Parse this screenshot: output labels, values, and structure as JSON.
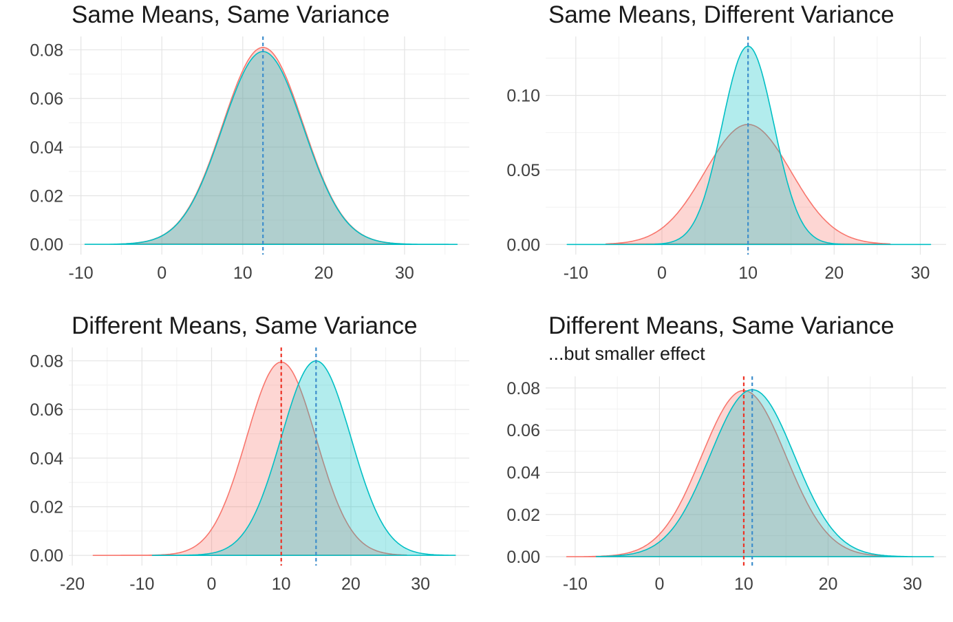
{
  "figure": {
    "background": "#ffffff",
    "colors": {
      "red_stroke": "#F8766D",
      "red_fill": "rgba(248,118,109,0.30)",
      "teal_stroke": "#00BFC4",
      "teal_fill": "rgba(0,191,196,0.30)",
      "blue_dashed": "#3E8ECC",
      "red_dashed": "#EE3124",
      "grid_major": "#E4E4E4",
      "grid_minor": "#F1F1F1",
      "axis_text": "#404040",
      "title_text": "#1a1a1a"
    }
  },
  "chart_data": [
    {
      "type": "area",
      "title": "Same Means, Same Variance",
      "subtitle": "",
      "xlabel": "",
      "ylabel": "",
      "grid": true,
      "legend": "none",
      "xlim": [
        -11.5,
        38
      ],
      "ylim": [
        -0.0042,
        0.0855
      ],
      "x_ticks": [
        -10,
        0,
        10,
        20,
        30
      ],
      "x_tick_labels": [
        "-10",
        "0",
        "10",
        "20",
        "30"
      ],
      "x_minor_ticks": [
        -5,
        5,
        15,
        25,
        35
      ],
      "y_ticks": [
        0,
        0.02,
        0.04,
        0.06,
        0.08
      ],
      "y_tick_labels": [
        "0.00",
        "0.02",
        "0.04",
        "0.06",
        "0.08"
      ],
      "y_minor_ticks": [
        0.01,
        0.03,
        0.05,
        0.07
      ],
      "series": [
        {
          "name": "distribution-red",
          "color_key": "red",
          "distribution": "normal",
          "mean": 12.5,
          "sd": 5,
          "peak_density": 0.081,
          "x_range": [
            -5,
            30
          ]
        },
        {
          "name": "distribution-teal",
          "color_key": "teal",
          "distribution": "normal",
          "mean": 12.5,
          "sd": 5,
          "peak_density": 0.0793,
          "x_range": [
            -9.5,
            36.5
          ]
        }
      ],
      "vlines": [
        {
          "x": 12.5,
          "color_key": "blue_dashed",
          "style": "dashed"
        }
      ]
    },
    {
      "type": "area",
      "title": "Same Means, Different Variance",
      "subtitle": "",
      "xlabel": "",
      "ylabel": "",
      "grid": true,
      "legend": "none",
      "xlim": [
        -13.5,
        33
      ],
      "ylim": [
        -0.0068,
        0.1395
      ],
      "x_ticks": [
        -10,
        0,
        10,
        20,
        30
      ],
      "x_tick_labels": [
        "-10",
        "0",
        "10",
        "20",
        "30"
      ],
      "x_minor_ticks": [
        -5,
        5,
        15,
        25
      ],
      "y_ticks": [
        0,
        0.05,
        0.1
      ],
      "y_tick_labels": [
        "0.00",
        "0.05",
        "0.10"
      ],
      "y_minor_ticks": [
        0.025,
        0.075,
        0.125
      ],
      "series": [
        {
          "name": "distribution-red",
          "color_key": "red",
          "distribution": "normal",
          "mean": 10,
          "sd": 5,
          "peak_density": 0.0805,
          "x_range": [
            -6.5,
            26.5
          ]
        },
        {
          "name": "distribution-teal",
          "color_key": "teal",
          "distribution": "normal",
          "mean": 10,
          "sd": 3,
          "peak_density": 0.133,
          "x_range": [
            -11,
            31.2
          ]
        }
      ],
      "vlines": [
        {
          "x": 10,
          "color_key": "blue_dashed",
          "style": "dashed"
        }
      ]
    },
    {
      "type": "area",
      "title": "Different Means, Same Variance",
      "subtitle": "",
      "xlabel": "",
      "ylabel": "",
      "grid": true,
      "legend": "none",
      "xlim": [
        -20.5,
        37
      ],
      "ylim": [
        -0.0042,
        0.0855
      ],
      "x_ticks": [
        -20,
        -10,
        0,
        10,
        20,
        30
      ],
      "x_tick_labels": [
        "-20",
        "-10",
        "0",
        "10",
        "20",
        "30"
      ],
      "x_minor_ticks": [
        -15,
        -5,
        5,
        15,
        25,
        35
      ],
      "y_ticks": [
        0,
        0.02,
        0.04,
        0.06,
        0.08
      ],
      "y_tick_labels": [
        "0.00",
        "0.02",
        "0.04",
        "0.06",
        "0.08"
      ],
      "y_minor_ticks": [
        0.01,
        0.03,
        0.05,
        0.07
      ],
      "series": [
        {
          "name": "distribution-red",
          "color_key": "red",
          "distribution": "normal",
          "mean": 10,
          "sd": 5,
          "peak_density": 0.0795,
          "x_range": [
            -17,
            28
          ]
        },
        {
          "name": "distribution-teal",
          "color_key": "teal",
          "distribution": "normal",
          "mean": 15,
          "sd": 5,
          "peak_density": 0.08,
          "x_range": [
            -8.5,
            35
          ]
        }
      ],
      "vlines": [
        {
          "x": 10,
          "color_key": "red_dashed",
          "style": "dashed"
        },
        {
          "x": 15,
          "color_key": "blue_dashed",
          "style": "dashed"
        }
      ]
    },
    {
      "type": "area",
      "title": "Different Means, Same Variance",
      "subtitle": "...but smaller effect",
      "xlabel": "",
      "ylabel": "",
      "grid": true,
      "legend": "none",
      "xlim": [
        -13.5,
        34
      ],
      "ylim": [
        -0.0042,
        0.0855
      ],
      "x_ticks": [
        -10,
        0,
        10,
        20,
        30
      ],
      "x_tick_labels": [
        "-10",
        "0",
        "10",
        "20",
        "30"
      ],
      "x_minor_ticks": [
        -5,
        5,
        15,
        25
      ],
      "y_ticks": [
        0,
        0.02,
        0.04,
        0.06,
        0.08
      ],
      "y_tick_labels": [
        "0.00",
        "0.02",
        "0.04",
        "0.06",
        "0.08"
      ],
      "y_minor_ticks": [
        0.01,
        0.03,
        0.05,
        0.07
      ],
      "series": [
        {
          "name": "distribution-red",
          "color_key": "red",
          "distribution": "normal",
          "mean": 10,
          "sd": 5,
          "peak_density": 0.0788,
          "x_range": [
            -11,
            27.5
          ]
        },
        {
          "name": "distribution-teal",
          "color_key": "teal",
          "distribution": "normal",
          "mean": 11,
          "sd": 5,
          "peak_density": 0.0792,
          "x_range": [
            -7.5,
            32.5
          ]
        }
      ],
      "vlines": [
        {
          "x": 10,
          "color_key": "red_dashed",
          "style": "dashed"
        },
        {
          "x": 11,
          "color_key": "blue_dashed",
          "style": "dashed"
        }
      ]
    }
  ]
}
